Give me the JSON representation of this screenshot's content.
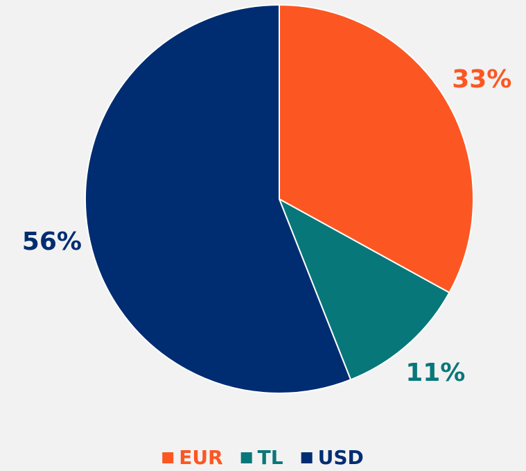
{
  "chart_data": {
    "type": "pie",
    "categories": [
      "EUR",
      "TL",
      "USD"
    ],
    "values": [
      33,
      11,
      56
    ],
    "value_labels": [
      "33%",
      "11%",
      "56%"
    ],
    "colors": [
      "#fc5722",
      "#08777a",
      "#002d72"
    ],
    "legend": "bottom"
  }
}
